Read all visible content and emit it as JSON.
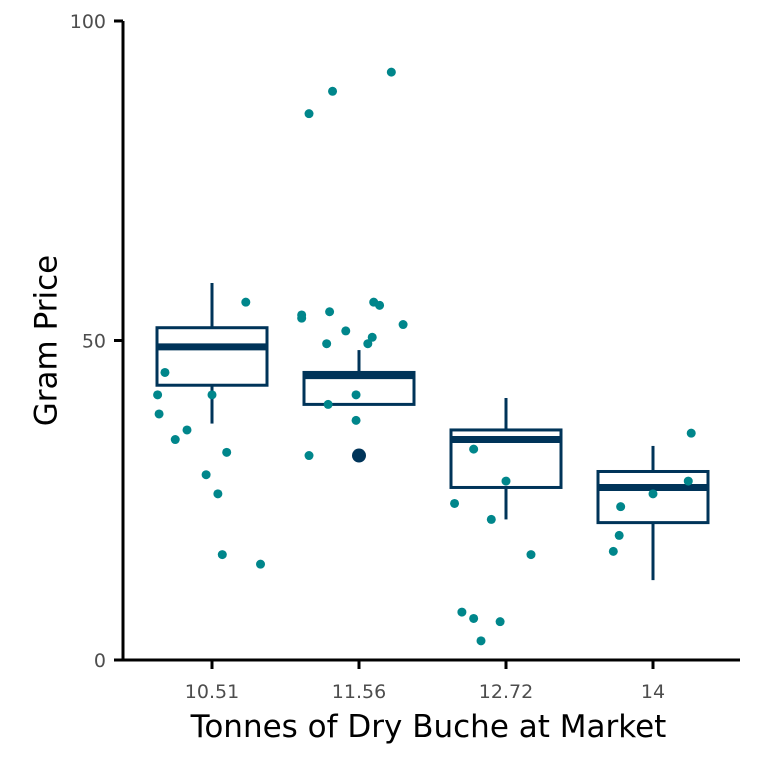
{
  "chart_data": {
    "type": "box",
    "title": "",
    "xlabel": "Tonnes of Dry Buche at Market",
    "ylabel": "Gram Price",
    "ylim": [
      0,
      100
    ],
    "yticks": [
      0,
      50,
      100
    ],
    "categories": [
      "10.51",
      "11.56",
      "12.72",
      "14"
    ],
    "grid": false,
    "legend": "none",
    "boxes": [
      {
        "category": "10.51",
        "whisker_low": 37,
        "q1": 43,
        "median": 49,
        "q3": 52,
        "whisker_high": 59,
        "outliers": []
      },
      {
        "category": "11.56",
        "whisker_low": 40,
        "q1": 40,
        "median": 44.5,
        "q3": 45,
        "whisker_high": 48.5,
        "outliers": [
          32
        ]
      },
      {
        "category": "12.72",
        "whisker_low": 22,
        "q1": 27,
        "median": 34.5,
        "q3": 36,
        "whisker_high": 41,
        "outliers": []
      },
      {
        "category": "14",
        "whisker_low": 12.5,
        "q1": 21.5,
        "median": 27,
        "q3": 29.5,
        "whisker_high": 33.5,
        "outliers": []
      }
    ],
    "jitter_points": [
      {
        "category": "10.51",
        "offset": -0.37,
        "value": 41.5
      },
      {
        "category": "10.51",
        "offset": -0.36,
        "value": 38.5
      },
      {
        "category": "10.51",
        "offset": -0.32,
        "value": 45
      },
      {
        "category": "10.51",
        "offset": -0.25,
        "value": 34.5
      },
      {
        "category": "10.51",
        "offset": -0.17,
        "value": 36
      },
      {
        "category": "10.51",
        "offset": -0.04,
        "value": 29
      },
      {
        "category": "10.51",
        "offset": 0.0,
        "value": 41.5
      },
      {
        "category": "10.51",
        "offset": 0.04,
        "value": 26
      },
      {
        "category": "10.51",
        "offset": 0.07,
        "value": 16.5
      },
      {
        "category": "10.51",
        "offset": 0.1,
        "value": 32.5
      },
      {
        "category": "10.51",
        "offset": 0.23,
        "value": 56
      },
      {
        "category": "10.51",
        "offset": 0.33,
        "value": 15
      },
      {
        "category": "11.56",
        "offset": -0.39,
        "value": 53.5
      },
      {
        "category": "11.56",
        "offset": -0.39,
        "value": 54
      },
      {
        "category": "11.56",
        "offset": -0.34,
        "value": 85.5
      },
      {
        "category": "11.56",
        "offset": -0.34,
        "value": 32
      },
      {
        "category": "11.56",
        "offset": -0.22,
        "value": 49.5
      },
      {
        "category": "11.56",
        "offset": -0.21,
        "value": 40
      },
      {
        "category": "11.56",
        "offset": -0.18,
        "value": 89
      },
      {
        "category": "11.56",
        "offset": -0.2,
        "value": 54.5
      },
      {
        "category": "11.56",
        "offset": -0.09,
        "value": 51.5
      },
      {
        "category": "11.56",
        "offset": -0.02,
        "value": 41.5
      },
      {
        "category": "11.56",
        "offset": -0.02,
        "value": 37.5
      },
      {
        "category": "11.56",
        "offset": 0.06,
        "value": 49.5
      },
      {
        "category": "11.56",
        "offset": 0.09,
        "value": 50.5
      },
      {
        "category": "11.56",
        "offset": 0.1,
        "value": 56
      },
      {
        "category": "11.56",
        "offset": 0.14,
        "value": 55.5
      },
      {
        "category": "11.56",
        "offset": 0.22,
        "value": 92
      },
      {
        "category": "11.56",
        "offset": 0.3,
        "value": 52.5
      },
      {
        "category": "12.72",
        "offset": -0.35,
        "value": 24.5
      },
      {
        "category": "12.72",
        "offset": -0.3,
        "value": 7.5
      },
      {
        "category": "12.72",
        "offset": -0.22,
        "value": 6.5
      },
      {
        "category": "12.72",
        "offset": -0.22,
        "value": 33
      },
      {
        "category": "12.72",
        "offset": -0.17,
        "value": 3
      },
      {
        "category": "12.72",
        "offset": -0.1,
        "value": 22
      },
      {
        "category": "12.72",
        "offset": -0.04,
        "value": 6
      },
      {
        "category": "12.72",
        "offset": 0.0,
        "value": 28
      },
      {
        "category": "12.72",
        "offset": 0.17,
        "value": 16.5
      },
      {
        "category": "14",
        "offset": -0.27,
        "value": 17
      },
      {
        "category": "14",
        "offset": -0.23,
        "value": 19.5
      },
      {
        "category": "14",
        "offset": -0.22,
        "value": 24
      },
      {
        "category": "14",
        "offset": 0.0,
        "value": 26
      },
      {
        "category": "14",
        "offset": 0.24,
        "value": 28
      },
      {
        "category": "14",
        "offset": 0.26,
        "value": 35.5
      }
    ],
    "colors": {
      "box": "#003459",
      "points": "#00868b",
      "outlier": "#003459",
      "axis": "#000000"
    }
  }
}
